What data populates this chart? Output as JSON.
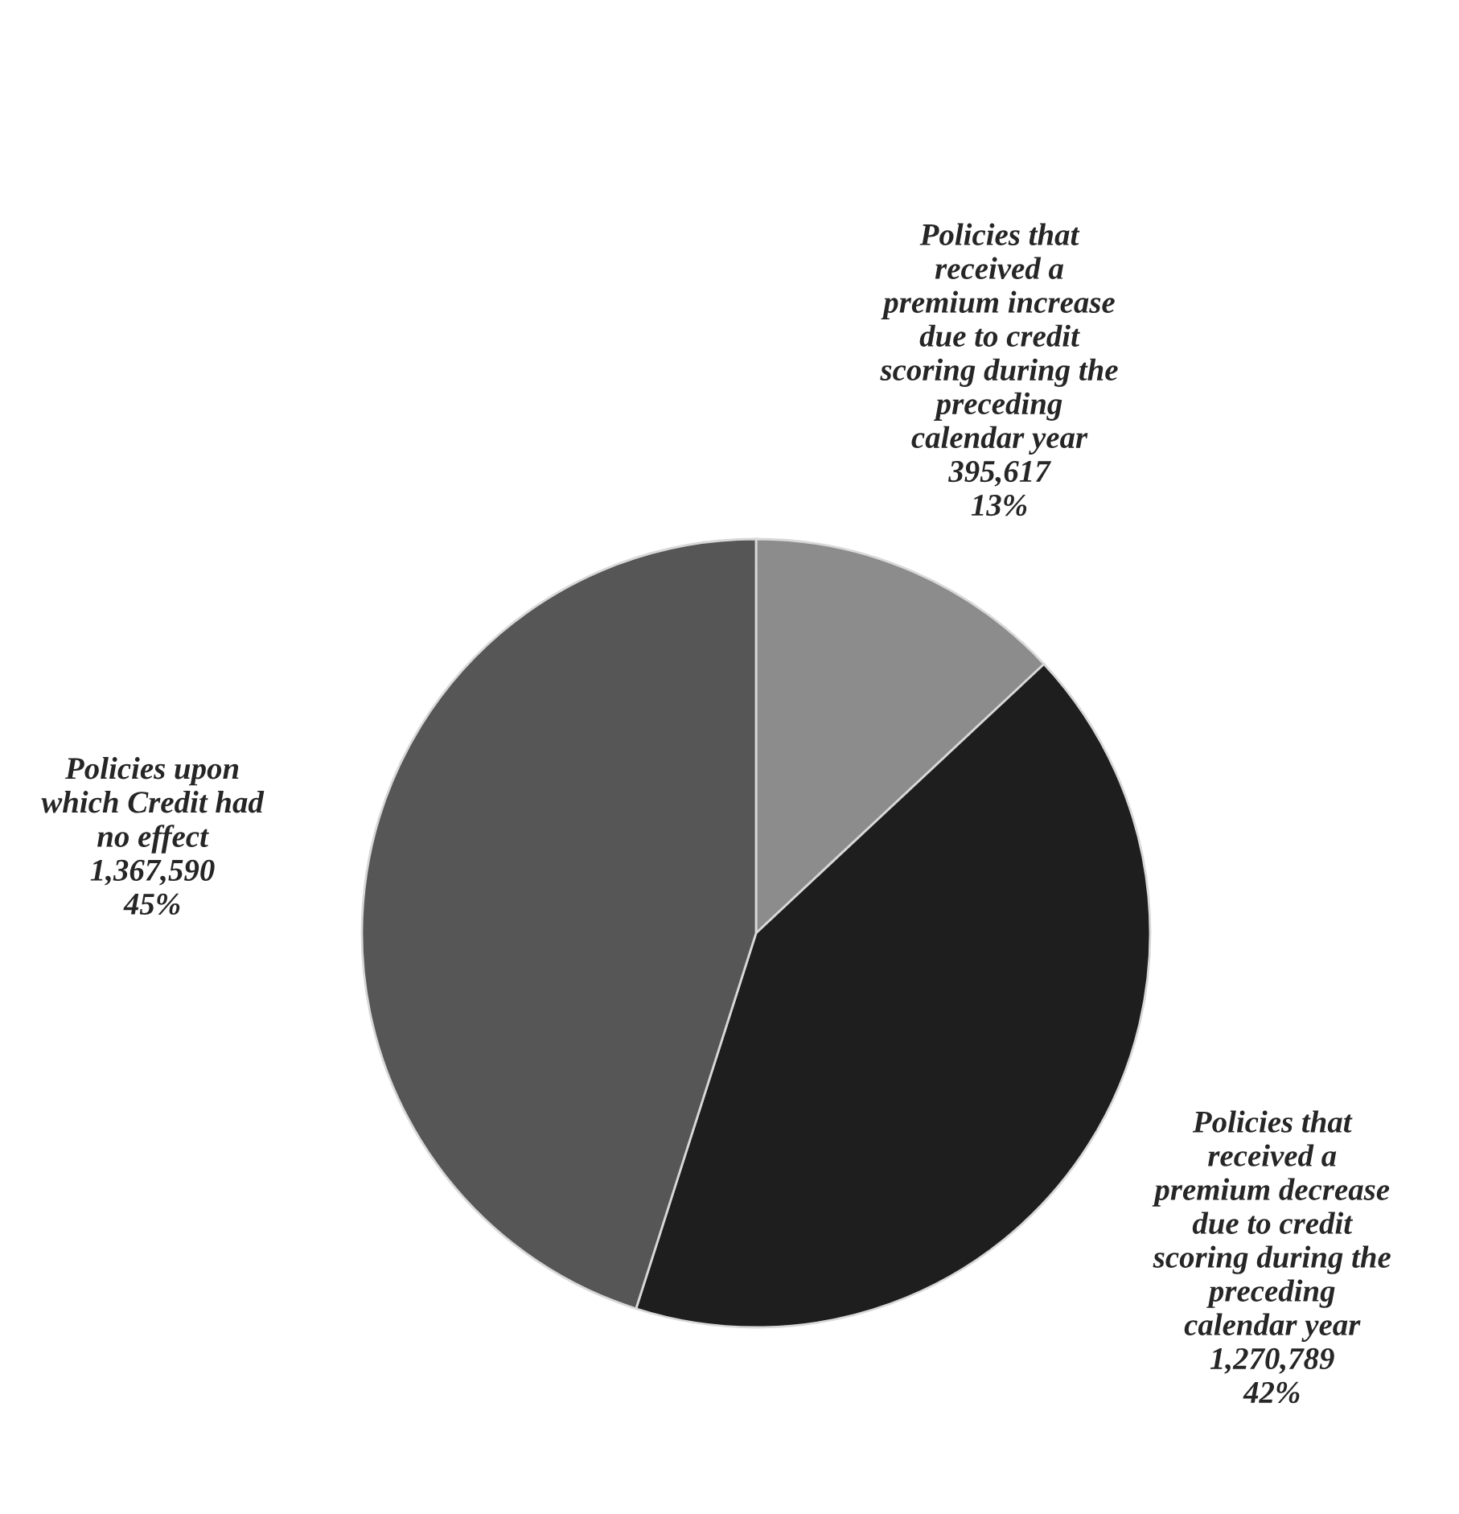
{
  "chart_data": {
    "type": "pie",
    "categories": [
      "Policies that\nreceived a\npremium increase\ndue to credit\nscoring during the\npreceding\ncalendar year",
      "Policies that\nreceived a\npremium decrease\ndue to credit\nscoring during the\npreceding\ncalendar year",
      "Policies upon\nwhich Credit had\nno effect"
    ],
    "values": [
      395617,
      1270789,
      1367590
    ],
    "value_labels": [
      "395,617\n13%",
      "1,270,789\n42%",
      "1,367,590\n45%"
    ],
    "colors": [
      "#8c8c8c",
      "#1e1e1e",
      "#565656"
    ]
  }
}
